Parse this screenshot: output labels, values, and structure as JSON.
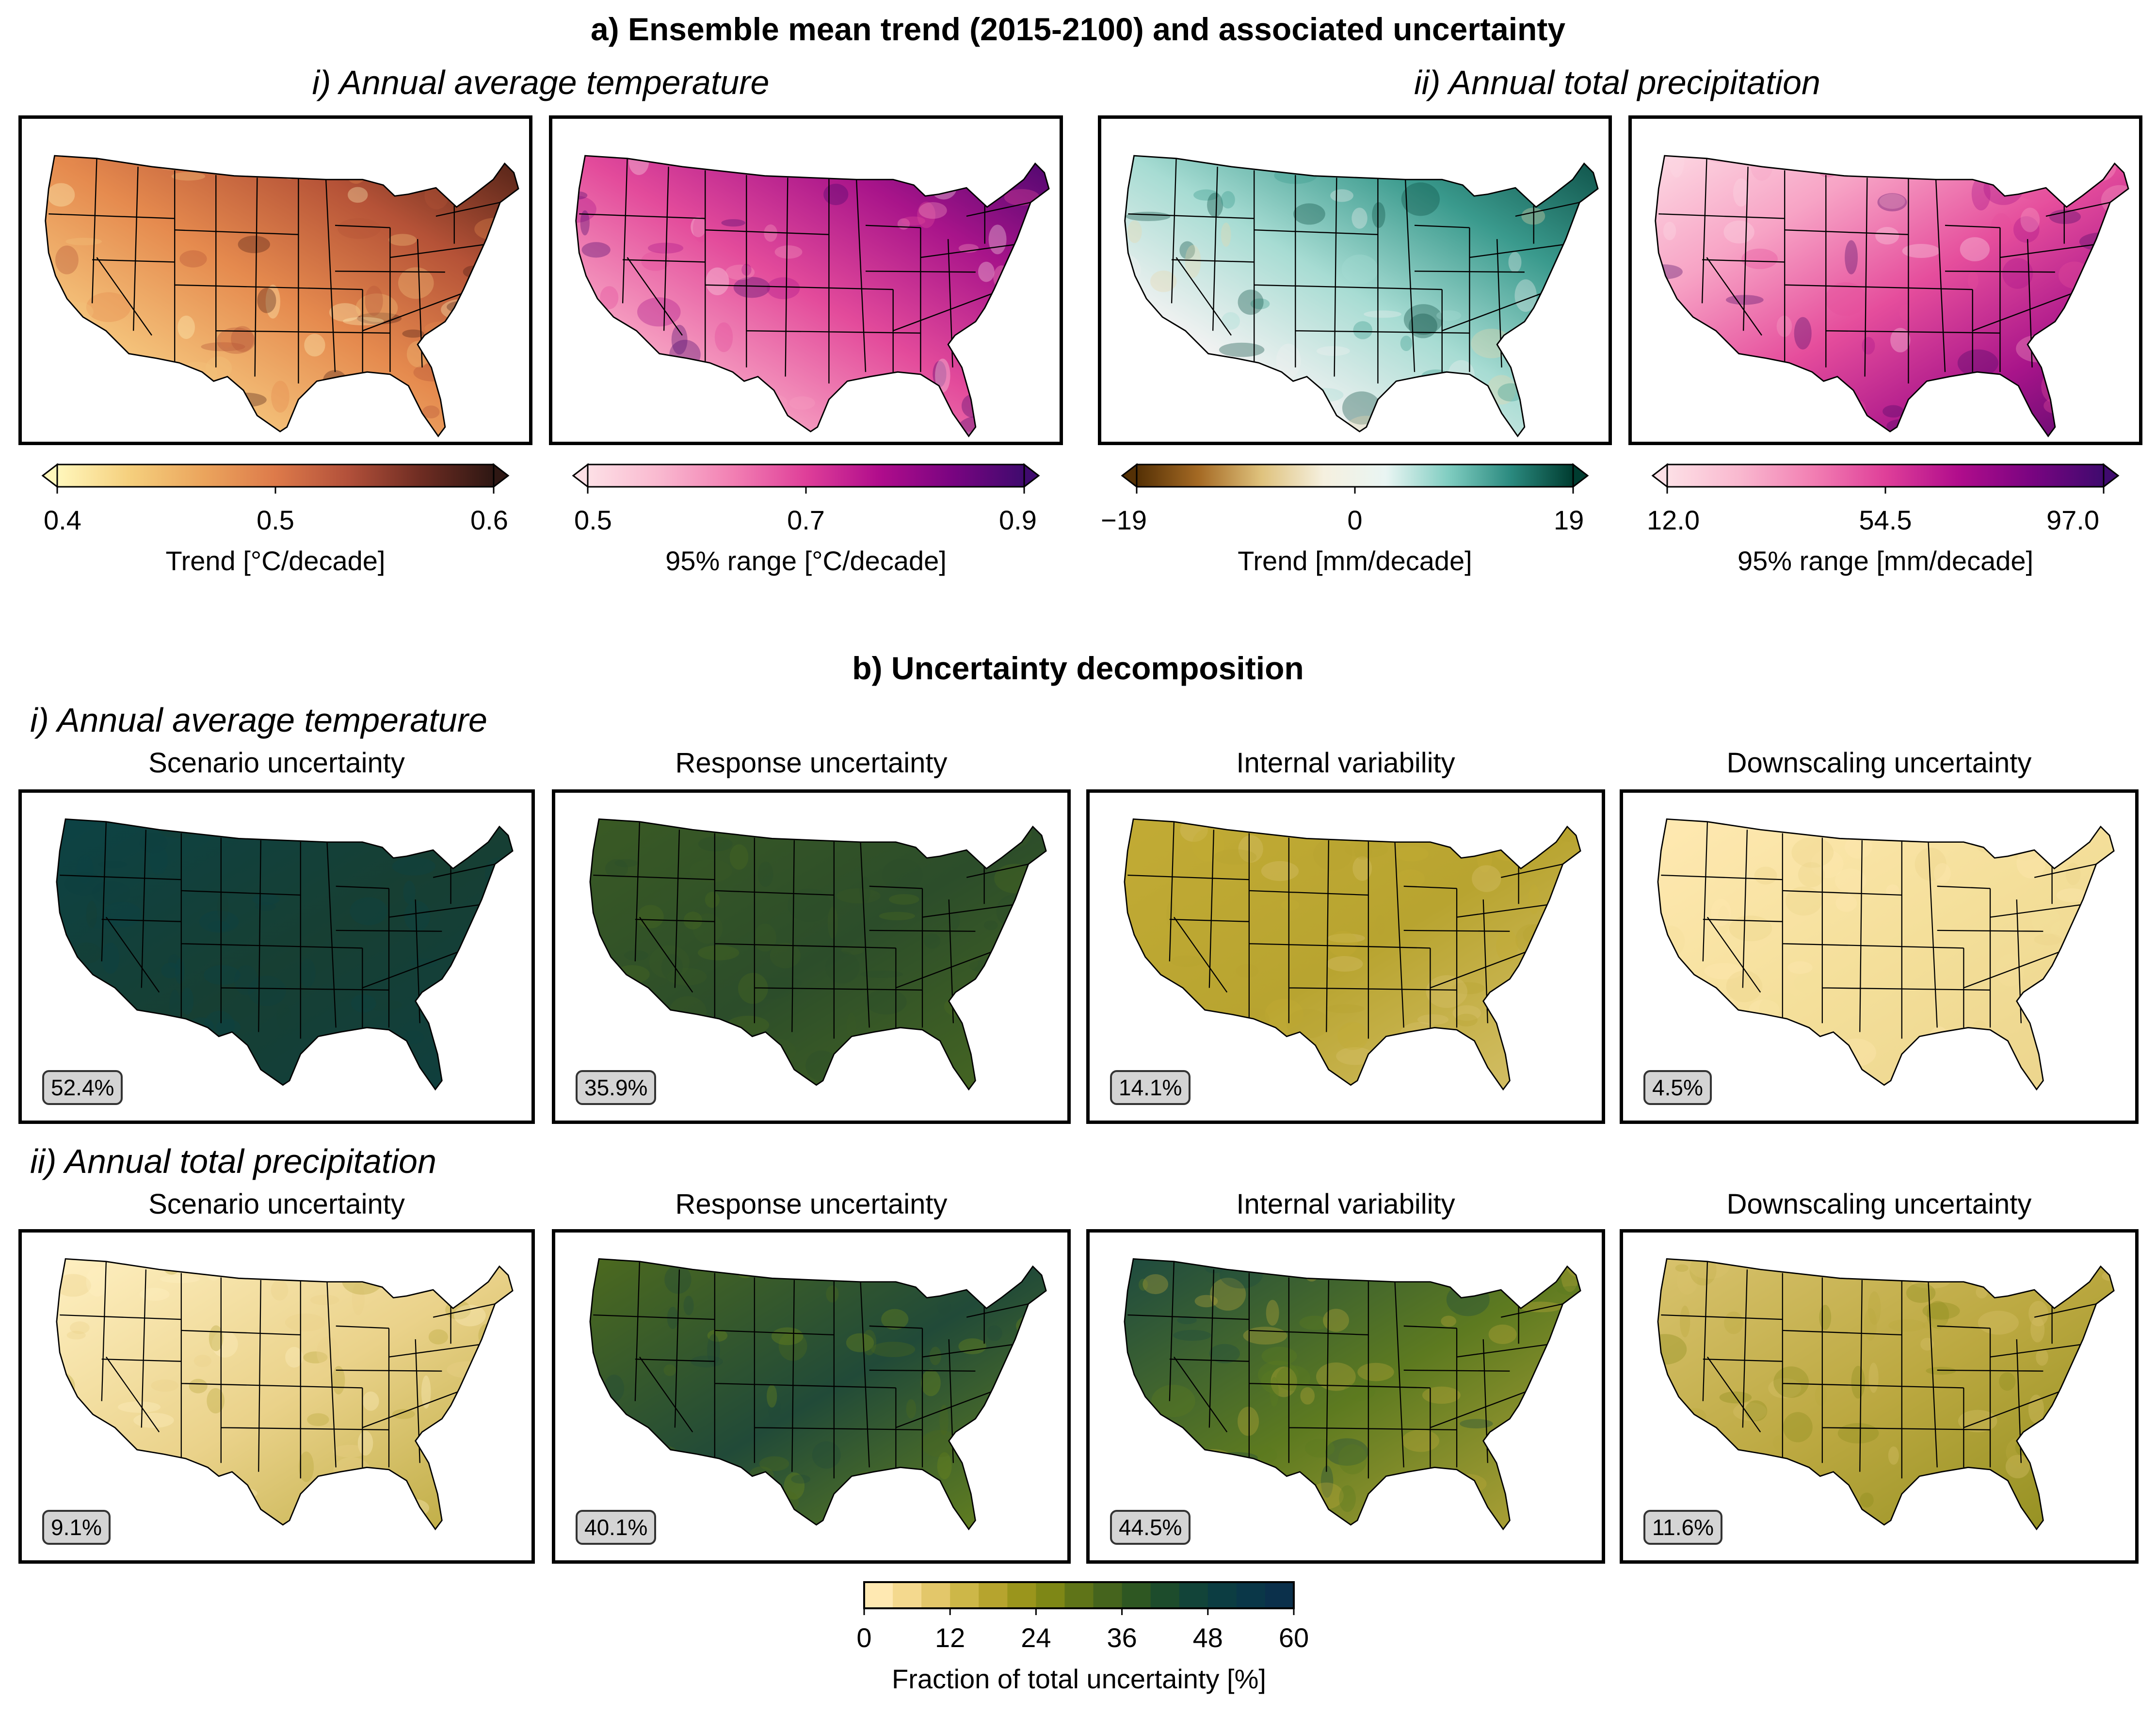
{
  "section_a": {
    "title": "a) Ensemble mean trend (2015-2100) and associated uncertainty",
    "sub_temp": "i) Annual average temperature",
    "sub_precip": "ii) Annual total precipitation",
    "panels": [
      {
        "id": "temp-trend",
        "map_colors": [
          "#fff7bc",
          "#f4c27a",
          "#e58a4e",
          "#b55237",
          "#4a1e14"
        ]
      },
      {
        "id": "temp-range",
        "map_colors": [
          "#fce3e9",
          "#f59dc0",
          "#e34b9b",
          "#a8148a",
          "#47066e"
        ]
      },
      {
        "id": "precip-trend",
        "map_colors": [
          "#e8d8ad",
          "#f2f2f2",
          "#a7dcd3",
          "#3a9a8d",
          "#0b4c43"
        ]
      },
      {
        "id": "precip-range",
        "map_colors": [
          "#fddbe4",
          "#f7a3c5",
          "#e54d9c",
          "#a8148a",
          "#4b0868"
        ]
      }
    ],
    "colorbars": [
      {
        "ticks": [
          "0.4",
          "0.5",
          "0.6"
        ],
        "label": "Trend [°C/decade]",
        "extend": "both",
        "colors": [
          "#fff7bc",
          "#f5cf7d",
          "#eba55d",
          "#dd7a4a",
          "#b2503a",
          "#6e2c22",
          "#2e1713"
        ]
      },
      {
        "ticks": [
          "0.5",
          "0.7",
          "0.9"
        ],
        "label": "95% range [°C/decade]",
        "extend": "both",
        "colors": [
          "#fde0e6",
          "#f9b8cf",
          "#f27fb3",
          "#df3f99",
          "#b10d8c",
          "#7a0481",
          "#3f0a6e"
        ]
      },
      {
        "ticks": [
          "−19",
          "0",
          "19"
        ],
        "label": "Trend [mm/decade]",
        "extend": "both",
        "colors": [
          "#543005",
          "#a56a24",
          "#dfc27d",
          "#f5f0df",
          "#e9f5f3",
          "#80cdc1",
          "#2b8a7f",
          "#003c30"
        ]
      },
      {
        "ticks": [
          "12.0",
          "54.5",
          "97.0"
        ],
        "label": "95% range [mm/decade]",
        "extend": "both",
        "colors": [
          "#fde0e6",
          "#f9b8cf",
          "#f27fb3",
          "#df3f99",
          "#b10d8c",
          "#7a0481",
          "#3f0a6e"
        ]
      }
    ]
  },
  "section_b": {
    "title": "b) Uncertainty decomposition",
    "sub_temp": "i) Annual average temperature",
    "sub_precip": "ii) Annual total precipitation",
    "columns": [
      "Scenario uncertainty",
      "Response uncertainty",
      "Internal variability",
      "Downscaling uncertainty"
    ],
    "temp_values": [
      "52.4%",
      "35.9%",
      "14.1%",
      "4.5%"
    ],
    "precip_values": [
      "9.1%",
      "40.1%",
      "44.5%",
      "11.6%"
    ],
    "temp_colors": [
      [
        "#0c4245",
        "#173f33",
        "#0e3f40"
      ],
      [
        "#3a5a24",
        "#2c4d2a",
        "#4a6a20"
      ],
      [
        "#c2ab35",
        "#b8a430",
        "#d9c470"
      ],
      [
        "#ffe9b2",
        "#f4df9a",
        "#ead38a"
      ]
    ],
    "precip_colors": [
      [
        "#fff0c2",
        "#ead28a",
        "#b7a638"
      ],
      [
        "#4d6a1e",
        "#214a38",
        "#708a1a"
      ],
      [
        "#1d4a40",
        "#5d7a20",
        "#bca83a"
      ],
      [
        "#d9c36e",
        "#bba840",
        "#8d8c1c"
      ]
    ],
    "colorbar": {
      "ticks": [
        "0",
        "12",
        "24",
        "36",
        "48",
        "60"
      ],
      "label": "Fraction of total uncertainty [%]",
      "colors": [
        "#ffe9b2",
        "#f4d98e",
        "#e3c76a",
        "#cdb748",
        "#b6a42e",
        "#9a951c",
        "#7e8716",
        "#5f7418",
        "#45641d",
        "#2e5722",
        "#1d4c2c",
        "#124439",
        "#0c3d42",
        "#0a3748",
        "#0b304b"
      ]
    }
  }
}
